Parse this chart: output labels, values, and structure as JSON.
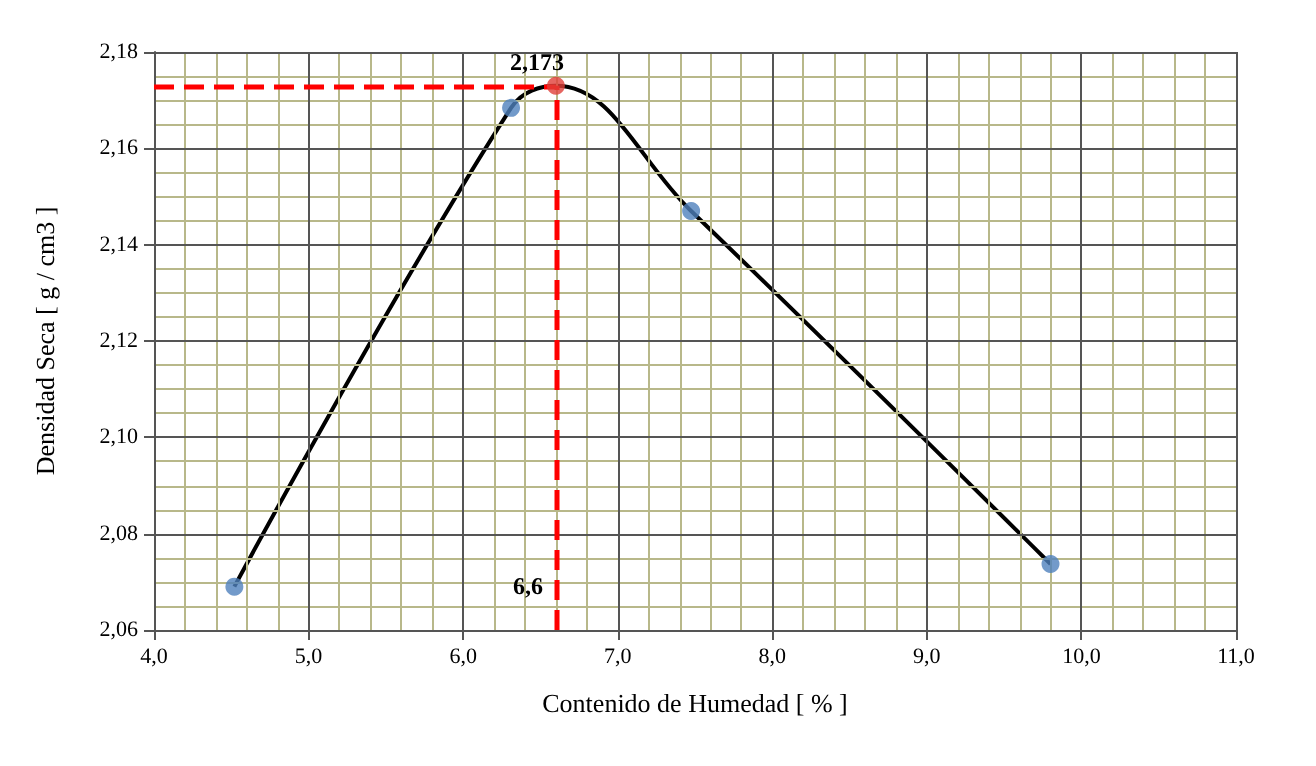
{
  "chart_data": {
    "type": "scatter",
    "xlabel": "Contenido de Humedad [ % ]",
    "ylabel": "Densidad Seca [ g / cm3 ]",
    "xlim": [
      4,
      11
    ],
    "xticks": [
      {
        "value": 4,
        "label": "4,0"
      },
      {
        "value": 4.2,
        "label": null
      },
      {
        "value": 4.4,
        "label": null
      },
      {
        "value": 4.6,
        "label": null
      },
      {
        "value": 4.8,
        "label": null
      },
      {
        "value": 5,
        "label": "5,0"
      },
      {
        "value": 5.2,
        "label": null
      },
      {
        "value": 5.4,
        "label": null
      },
      {
        "value": 5.6,
        "label": null
      },
      {
        "value": 5.8,
        "label": null
      },
      {
        "value": 6,
        "label": "6,0"
      },
      {
        "value": 6.2,
        "label": null
      },
      {
        "value": 6.4,
        "label": null
      },
      {
        "value": 6.6,
        "label": null
      },
      {
        "value": 6.8,
        "label": null
      },
      {
        "value": 7,
        "label": "7,0"
      },
      {
        "value": 7.2,
        "label": null
      },
      {
        "value": 7.4,
        "label": null
      },
      {
        "value": 7.6,
        "label": null
      },
      {
        "value": 7.8,
        "label": null
      },
      {
        "value": 8,
        "label": "8,0"
      },
      {
        "value": 8.2,
        "label": null
      },
      {
        "value": 8.4,
        "label": null
      },
      {
        "value": 8.6,
        "label": null
      },
      {
        "value": 8.8,
        "label": null
      },
      {
        "value": 9,
        "label": "9,0"
      },
      {
        "value": 9.2,
        "label": null
      },
      {
        "value": 9.4,
        "label": null
      },
      {
        "value": 9.6,
        "label": null
      },
      {
        "value": 9.8,
        "label": null
      },
      {
        "value": 10,
        "label": "10,0"
      },
      {
        "value": 10.2,
        "label": null
      },
      {
        "value": 10.4,
        "label": null
      },
      {
        "value": 10.6,
        "label": null
      },
      {
        "value": 10.8,
        "label": null
      },
      {
        "value": 11,
        "label": "11,0"
      }
    ],
    "ylim": [
      2.06,
      2.18
    ],
    "yticks": [
      {
        "value": 2.06,
        "label": "2,06"
      },
      {
        "value": 2.065,
        "label": null
      },
      {
        "value": 2.07,
        "label": null
      },
      {
        "value": 2.075,
        "label": null
      },
      {
        "value": 2.08,
        "label": "2,08"
      },
      {
        "value": 2.085,
        "label": null
      },
      {
        "value": 2.09,
        "label": null
      },
      {
        "value": 2.095,
        "label": null
      },
      {
        "value": 2.1,
        "label": "2,10"
      },
      {
        "value": 2.105,
        "label": null
      },
      {
        "value": 2.11,
        "label": null
      },
      {
        "value": 2.115,
        "label": null
      },
      {
        "value": 2.12,
        "label": "2,12"
      },
      {
        "value": 2.125,
        "label": null
      },
      {
        "value": 2.13,
        "label": null
      },
      {
        "value": 2.135,
        "label": null
      },
      {
        "value": 2.14,
        "label": "2,14"
      },
      {
        "value": 2.145,
        "label": null
      },
      {
        "value": 2.15,
        "label": null
      },
      {
        "value": 2.155,
        "label": null
      },
      {
        "value": 2.16,
        "label": "2,16"
      },
      {
        "value": 2.165,
        "label": null
      },
      {
        "value": 2.17,
        "label": null
      },
      {
        "value": 2.175,
        "label": null
      },
      {
        "value": 2.18,
        "label": "2,18"
      }
    ],
    "grid": true,
    "series": [
      {
        "type": "line",
        "color": "#000000",
        "marker": "none",
        "x": [
          4.52,
          6.31,
          6.6,
          7.475,
          9.8
        ],
        "values": [
          2.069,
          2.1684,
          2.173,
          2.147,
          2.0737
        ]
      },
      {
        "color": "#4f81bd",
        "marker": "circle",
        "x": [
          4.52,
          6.31,
          7.475,
          9.8
        ],
        "values": [
          2.069,
          2.1684,
          2.147,
          2.0737
        ]
      },
      {
        "color": "#e0403a",
        "marker": "circle",
        "x": [
          6.6
        ],
        "values": [
          2.173
        ]
      }
    ],
    "ref_lines": [
      {
        "axis": "x",
        "value": 6.6,
        "label": "6,6",
        "color": "#ff0000",
        "line_style": "dashed"
      },
      {
        "axis": "y",
        "value": 2.173,
        "label": "2,173",
        "color": "#ff0000",
        "line_style": "dashed"
      }
    ]
  }
}
